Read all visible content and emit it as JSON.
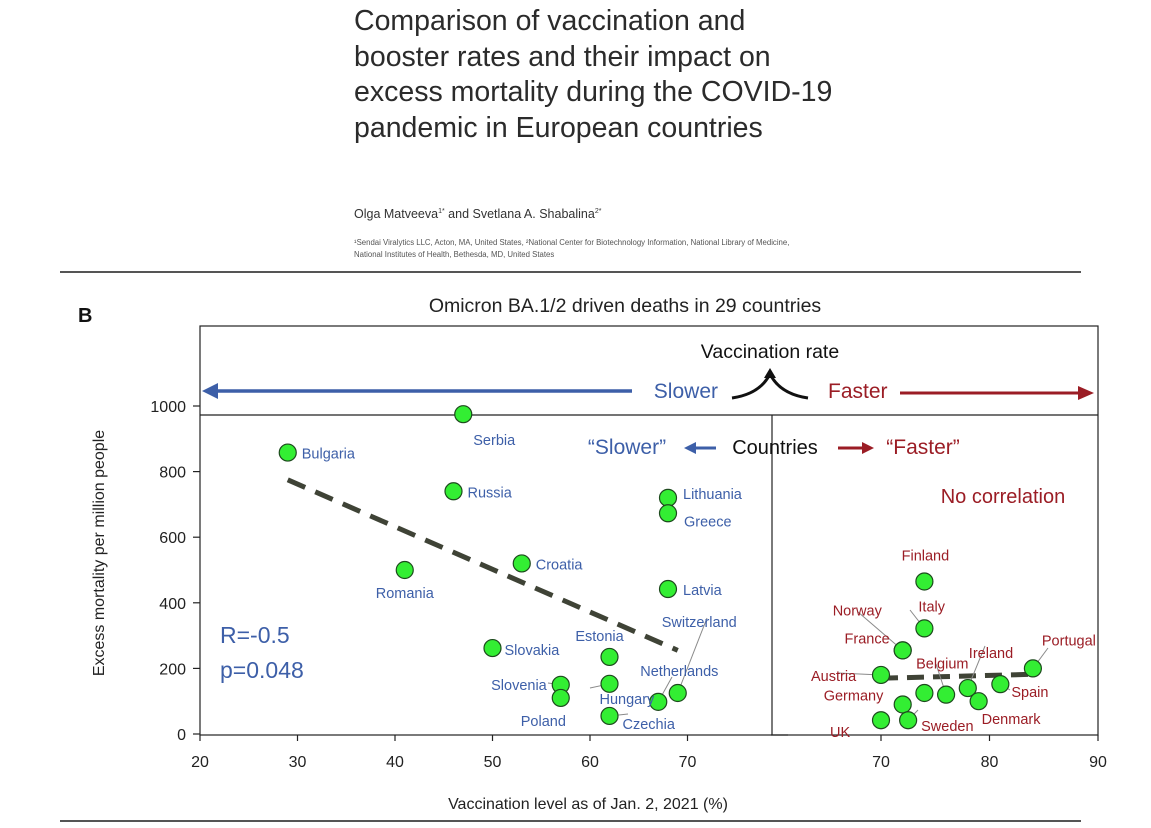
{
  "paper": {
    "title": "Comparison of vaccination and booster rates and their impact on excess mortality during the COVID-19 pandemic in European countries",
    "authors": "Olga Matveeva",
    "authors_sup1": "1*",
    "authors_and": " and Svetlana A. Shabalina",
    "authors_sup2": "2*",
    "affiliations": "¹Sendai Viralytics LLC, Acton, MA, United States, ²National Center for Biotechnology Information, National Library of Medicine, National Institutes of Health, Bethesda, MD, United States"
  },
  "chart_data": {
    "type": "scatter",
    "panel_label": "B",
    "title": "Omicron BA.1/2 driven deaths in 29 countries",
    "xlabel": "Vaccination level as of Jan. 2, 2021 (%)",
    "ylabel": "Excess mortality per million people",
    "ylim": [
      0,
      1000
    ],
    "yticks": [
      0,
      200,
      400,
      600,
      800,
      1000
    ],
    "grid": false,
    "point_color": "#33ee33",
    "header": {
      "vaccination_rate": "Vaccination rate",
      "slower": "Slower",
      "faster": "Faster",
      "slower_color": "#3d5fa8",
      "faster_color": "#9b1d25"
    },
    "countries_label": {
      "slower": "“Slower”",
      "middle": "Countries",
      "faster": "“Faster”"
    },
    "left_panel": {
      "xlim": [
        20,
        79
      ],
      "xticks": [
        20,
        30,
        40,
        50,
        60,
        70
      ],
      "label_color": "#3d5fa8",
      "stats_r": "R=-0.5",
      "stats_p": "p=0.048",
      "trend_line": {
        "x": [
          29,
          69
        ],
        "y": [
          775,
          255
        ]
      },
      "points": [
        {
          "name": "Bulgaria",
          "x": 29,
          "y": 858
        },
        {
          "name": "Serbia",
          "x": 47,
          "y": 975
        },
        {
          "name": "Russia",
          "x": 46,
          "y": 740
        },
        {
          "name": "Romania",
          "x": 41,
          "y": 500
        },
        {
          "name": "Croatia",
          "x": 53,
          "y": 520
        },
        {
          "name": "Lithuania",
          "x": 68,
          "y": 720
        },
        {
          "name": "Greece",
          "x": 68,
          "y": 673
        },
        {
          "name": "Latvia",
          "x": 68,
          "y": 442
        },
        {
          "name": "Switzerland",
          "x": 69,
          "y": 125
        },
        {
          "name": "Estonia",
          "x": 62,
          "y": 235
        },
        {
          "name": "Slovakia",
          "x": 50,
          "y": 262
        },
        {
          "name": "Netherlands",
          "x": 67,
          "y": 98
        },
        {
          "name": "Slovenia",
          "x": 57,
          "y": 150
        },
        {
          "name": "Hungary",
          "x": 62,
          "y": 153
        },
        {
          "name": "Poland",
          "x": 57,
          "y": 110
        },
        {
          "name": "Czechia",
          "x": 62,
          "y": 55
        }
      ]
    },
    "right_panel": {
      "xlim": [
        69,
        90
      ],
      "xticks": [
        70,
        80,
        90
      ],
      "label_color": "#9b1d25",
      "annotation": "No correlation",
      "trend_line": {
        "x": [
          70,
          84
        ],
        "y": [
          170,
          182
        ]
      },
      "points": [
        {
          "name": "Finland",
          "x": 74,
          "y": 465
        },
        {
          "name": "Italy",
          "x": 74,
          "y": 322
        },
        {
          "name": "Norway",
          "x": 72,
          "y": 255
        },
        {
          "name": "France",
          "x": 72,
          "y": 255
        },
        {
          "name": "Ireland",
          "x": 78,
          "y": 140
        },
        {
          "name": "Portugal",
          "x": 84,
          "y": 200
        },
        {
          "name": "Belgium",
          "x": 76,
          "y": 120
        },
        {
          "name": "Austria",
          "x": 70,
          "y": 180
        },
        {
          "name": "Germany",
          "x": 72,
          "y": 90
        },
        {
          "name": "UK",
          "x": 70,
          "y": 42
        },
        {
          "name": "Sweden",
          "x": 72.5,
          "y": 42
        },
        {
          "name": "Denmark",
          "x": 79,
          "y": 100
        },
        {
          "name": "Spain",
          "x": 81,
          "y": 152
        },
        {
          "name": "",
          "x": 74,
          "y": 125
        }
      ]
    }
  }
}
